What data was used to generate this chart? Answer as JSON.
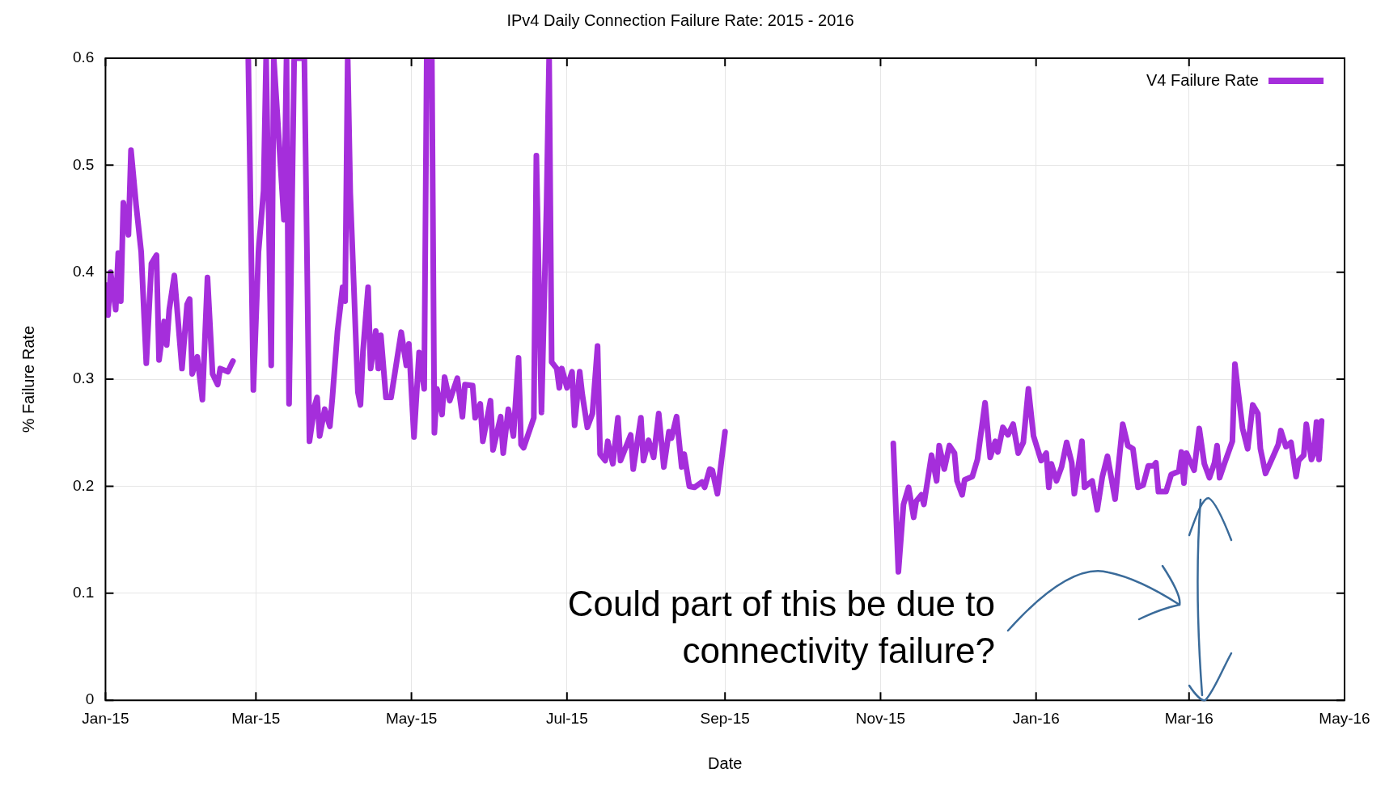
{
  "chart_data": {
    "type": "line",
    "title": "IPv4 Daily Connection Failure Rate: 2015 - 2016",
    "xlabel": "Date",
    "ylabel": "% Failure Rate",
    "xlim": [
      "2015-01-01",
      "2016-05-01"
    ],
    "xticks": [
      {
        "value": "2015-01-01",
        "label": "Jan-15"
      },
      {
        "value": "2015-03-01",
        "label": "Mar-15"
      },
      {
        "value": "2015-05-01",
        "label": "May-15"
      },
      {
        "value": "2015-07-01",
        "label": "Jul-15"
      },
      {
        "value": "2015-09-01",
        "label": "Sep-15"
      },
      {
        "value": "2015-11-01",
        "label": "Nov-15"
      },
      {
        "value": "2016-01-01",
        "label": "Jan-16"
      },
      {
        "value": "2016-03-01",
        "label": "Mar-16"
      },
      {
        "value": "2016-05-01",
        "label": "May-16"
      }
    ],
    "ylim": [
      0,
      0.6
    ],
    "yticks": [
      0,
      0.1,
      0.2,
      0.3,
      0.4,
      0.5,
      0.6
    ],
    "grid": true,
    "legend": "top right",
    "marker": "none",
    "line_style": "solid",
    "x": [
      "2015-01-01",
      "2015-01-02",
      "2015-01-03",
      "2015-01-05",
      "2015-01-06",
      "2015-01-07",
      "2015-01-08",
      "2015-01-10",
      "2015-01-11",
      "2015-01-13",
      "2015-01-15",
      "2015-01-17",
      "2015-01-19",
      "2015-01-21",
      "2015-01-22",
      "2015-01-24",
      "2015-01-25",
      "2015-01-26",
      "2015-01-28",
      "2015-01-31",
      "2015-02-02",
      "2015-02-03",
      "2015-02-04",
      "2015-02-06",
      "2015-02-08",
      "2015-02-10",
      "2015-02-12",
      "2015-02-14",
      "2015-02-15",
      "2015-02-18",
      "2015-02-20",
      "2015-02-23",
      "2015-02-26",
      "2015-02-28",
      "2015-03-02",
      "2015-03-04",
      "2015-03-05",
      "2015-03-07",
      "2015-03-08",
      "2015-03-12",
      "2015-03-13",
      "2015-03-14",
      "2015-03-16",
      "2015-03-20",
      "2015-03-22",
      "2015-03-24",
      "2015-03-25",
      "2015-03-26",
      "2015-03-28",
      "2015-03-30",
      "2015-03-31",
      "2015-04-02",
      "2015-04-04",
      "2015-04-05",
      "2015-04-06",
      "2015-04-07",
      "2015-04-10",
      "2015-04-11",
      "2015-04-12",
      "2015-04-14",
      "2015-04-15",
      "2015-04-17",
      "2015-04-18",
      "2015-04-19",
      "2015-04-21",
      "2015-04-23",
      "2015-04-27",
      "2015-04-29",
      "2015-04-30",
      "2015-05-02",
      "2015-05-04",
      "2015-05-06",
      "2015-05-07",
      "2015-05-09",
      "2015-05-10",
      "2015-05-11",
      "2015-05-13",
      "2015-05-14",
      "2015-05-16",
      "2015-05-19",
      "2015-05-21",
      "2015-05-22",
      "2015-05-25",
      "2015-05-26",
      "2015-05-28",
      "2015-05-29",
      "2015-06-01",
      "2015-06-02",
      "2015-06-05",
      "2015-06-06",
      "2015-06-08",
      "2015-06-10",
      "2015-06-12",
      "2015-06-13",
      "2015-06-14",
      "2015-06-18",
      "2015-06-19",
      "2015-06-21",
      "2015-06-23",
      "2015-06-24",
      "2015-06-25",
      "2015-06-27",
      "2015-06-28",
      "2015-06-29",
      "2015-07-01",
      "2015-07-03",
      "2015-07-04",
      "2015-07-06",
      "2015-07-07",
      "2015-07-09",
      "2015-07-11",
      "2015-07-13",
      "2015-07-14",
      "2015-07-16",
      "2015-07-17",
      "2015-07-19",
      "2015-07-21",
      "2015-07-22",
      "2015-07-24",
      "2015-07-26",
      "2015-07-27",
      "2015-07-30",
      "2015-07-31",
      "2015-08-02",
      "2015-08-04",
      "2015-08-06",
      "2015-08-08",
      "2015-08-10",
      "2015-08-11",
      "2015-08-13",
      "2015-08-15",
      "2015-08-16",
      "2015-08-18",
      "2015-08-20",
      "2015-08-23",
      "2015-08-24",
      "2015-08-26",
      "2015-08-27",
      "2015-08-29",
      "2015-09-01",
      "2015-10-01",
      "2015-11-06",
      "2015-11-08",
      "2015-11-10",
      "2015-11-12",
      "2015-11-14",
      "2015-11-15",
      "2015-11-17",
      "2015-11-18",
      "2015-11-21",
      "2015-11-23",
      "2015-11-24",
      "2015-11-26",
      "2015-11-28",
      "2015-11-30",
      "2015-12-01",
      "2015-12-03",
      "2015-12-04",
      "2015-12-07",
      "2015-12-09",
      "2015-12-12",
      "2015-12-14",
      "2015-12-16",
      "2015-12-17",
      "2015-12-19",
      "2015-12-21",
      "2015-12-23",
      "2015-12-25",
      "2015-12-27",
      "2015-12-29",
      "2015-12-31",
      "2016-01-03",
      "2016-01-05",
      "2016-01-06",
      "2016-01-07",
      "2016-01-09",
      "2016-01-11",
      "2016-01-13",
      "2016-01-15",
      "2016-01-16",
      "2016-01-19",
      "2016-01-20",
      "2016-01-23",
      "2016-01-25",
      "2016-01-27",
      "2016-01-29",
      "2016-02-01",
      "2016-02-04",
      "2016-02-06",
      "2016-02-08",
      "2016-02-10",
      "2016-02-12",
      "2016-02-14",
      "2016-02-16",
      "2016-02-17",
      "2016-02-18",
      "2016-02-21",
      "2016-02-23",
      "2016-02-26",
      "2016-02-27",
      "2016-02-28",
      "2016-02-29",
      "2016-03-03",
      "2016-03-05",
      "2016-03-07",
      "2016-03-09",
      "2016-03-11",
      "2016-03-12",
      "2016-03-13",
      "2016-03-15",
      "2016-03-18",
      "2016-03-19",
      "2016-03-21",
      "2016-03-22",
      "2016-03-24",
      "2016-03-26",
      "2016-03-28",
      "2016-03-29",
      "2016-03-31",
      "2016-04-03",
      "2016-04-05",
      "2016-04-06",
      "2016-04-08",
      "2016-04-10",
      "2016-04-12",
      "2016-04-13",
      "2016-04-15",
      "2016-04-16",
      "2016-04-18",
      "2016-04-19",
      "2016-04-20",
      "2016-04-21",
      "2016-04-22"
    ],
    "series": [
      {
        "name": "V4 Failure Rate",
        "color": "#a52edb",
        "values": [
          0.388,
          0.36,
          0.4,
          0.365,
          0.418,
          0.373,
          0.465,
          0.435,
          0.514,
          0.463,
          0.419,
          0.315,
          0.408,
          0.416,
          0.318,
          0.354,
          0.332,
          0.365,
          0.397,
          0.31,
          0.37,
          0.375,
          0.305,
          0.321,
          0.281,
          0.395,
          0.305,
          0.295,
          0.31,
          0.307,
          0.317,
          null,
          0.6,
          0.29,
          0.419,
          0.476,
          0.6,
          0.313,
          0.6,
          0.449,
          0.6,
          0.277,
          0.6,
          0.6,
          0.242,
          0.275,
          0.283,
          0.247,
          0.272,
          0.256,
          0.283,
          0.345,
          0.386,
          0.373,
          0.6,
          0.474,
          0.288,
          0.276,
          0.326,
          0.386,
          0.31,
          0.345,
          0.31,
          0.341,
          0.283,
          0.283,
          0.344,
          0.313,
          0.333,
          0.246,
          0.325,
          0.291,
          0.6,
          0.6,
          0.25,
          0.291,
          0.267,
          0.302,
          0.28,
          0.301,
          0.265,
          0.295,
          0.294,
          0.264,
          0.277,
          0.242,
          0.28,
          0.234,
          0.265,
          0.231,
          0.272,
          0.247,
          0.32,
          0.239,
          0.236,
          0.264,
          0.509,
          0.269,
          0.463,
          0.6,
          0.316,
          0.31,
          0.292,
          0.31,
          0.292,
          0.307,
          0.257,
          0.307,
          0.286,
          0.255,
          0.268,
          0.331,
          0.23,
          0.224,
          0.242,
          0.221,
          0.264,
          0.224,
          0.236,
          0.248,
          0.216,
          0.264,
          0.224,
          0.243,
          0.227,
          0.268,
          0.218,
          0.251,
          0.245,
          0.265,
          0.218,
          0.23,
          0.2,
          0.199,
          0.204,
          0.199,
          0.216,
          0.215,
          0.193,
          0.251,
          null,
          0.24,
          0.12,
          0.183,
          0.199,
          0.171,
          0.186,
          0.192,
          0.183,
          0.229,
          0.205,
          0.238,
          0.216,
          0.238,
          0.231,
          0.205,
          0.192,
          0.206,
          0.209,
          0.225,
          0.278,
          0.227,
          0.242,
          0.232,
          0.255,
          0.248,
          0.258,
          0.231,
          0.241,
          0.291,
          0.247,
          0.224,
          0.231,
          0.199,
          0.221,
          0.205,
          0.218,
          0.241,
          0.222,
          0.193,
          0.242,
          0.199,
          0.205,
          0.178,
          0.209,
          0.228,
          0.188,
          0.258,
          0.238,
          0.235,
          0.199,
          0.201,
          0.219,
          0.219,
          0.222,
          0.195,
          0.195,
          0.211,
          0.214,
          0.232,
          0.203,
          0.231,
          0.215,
          0.254,
          0.221,
          0.208,
          0.222,
          0.238,
          0.208,
          0.222,
          0.242,
          0.314,
          0.274,
          0.254,
          0.235,
          0.276,
          0.268,
          0.235,
          0.212,
          0.228,
          0.239,
          0.252,
          0.237,
          0.241,
          0.209,
          0.224,
          0.229,
          0.258,
          0.225,
          0.231,
          0.26,
          0.225,
          0.261
        ]
      }
    ],
    "annotations": [
      "Could part of this be due to connectivity failure?"
    ]
  }
}
